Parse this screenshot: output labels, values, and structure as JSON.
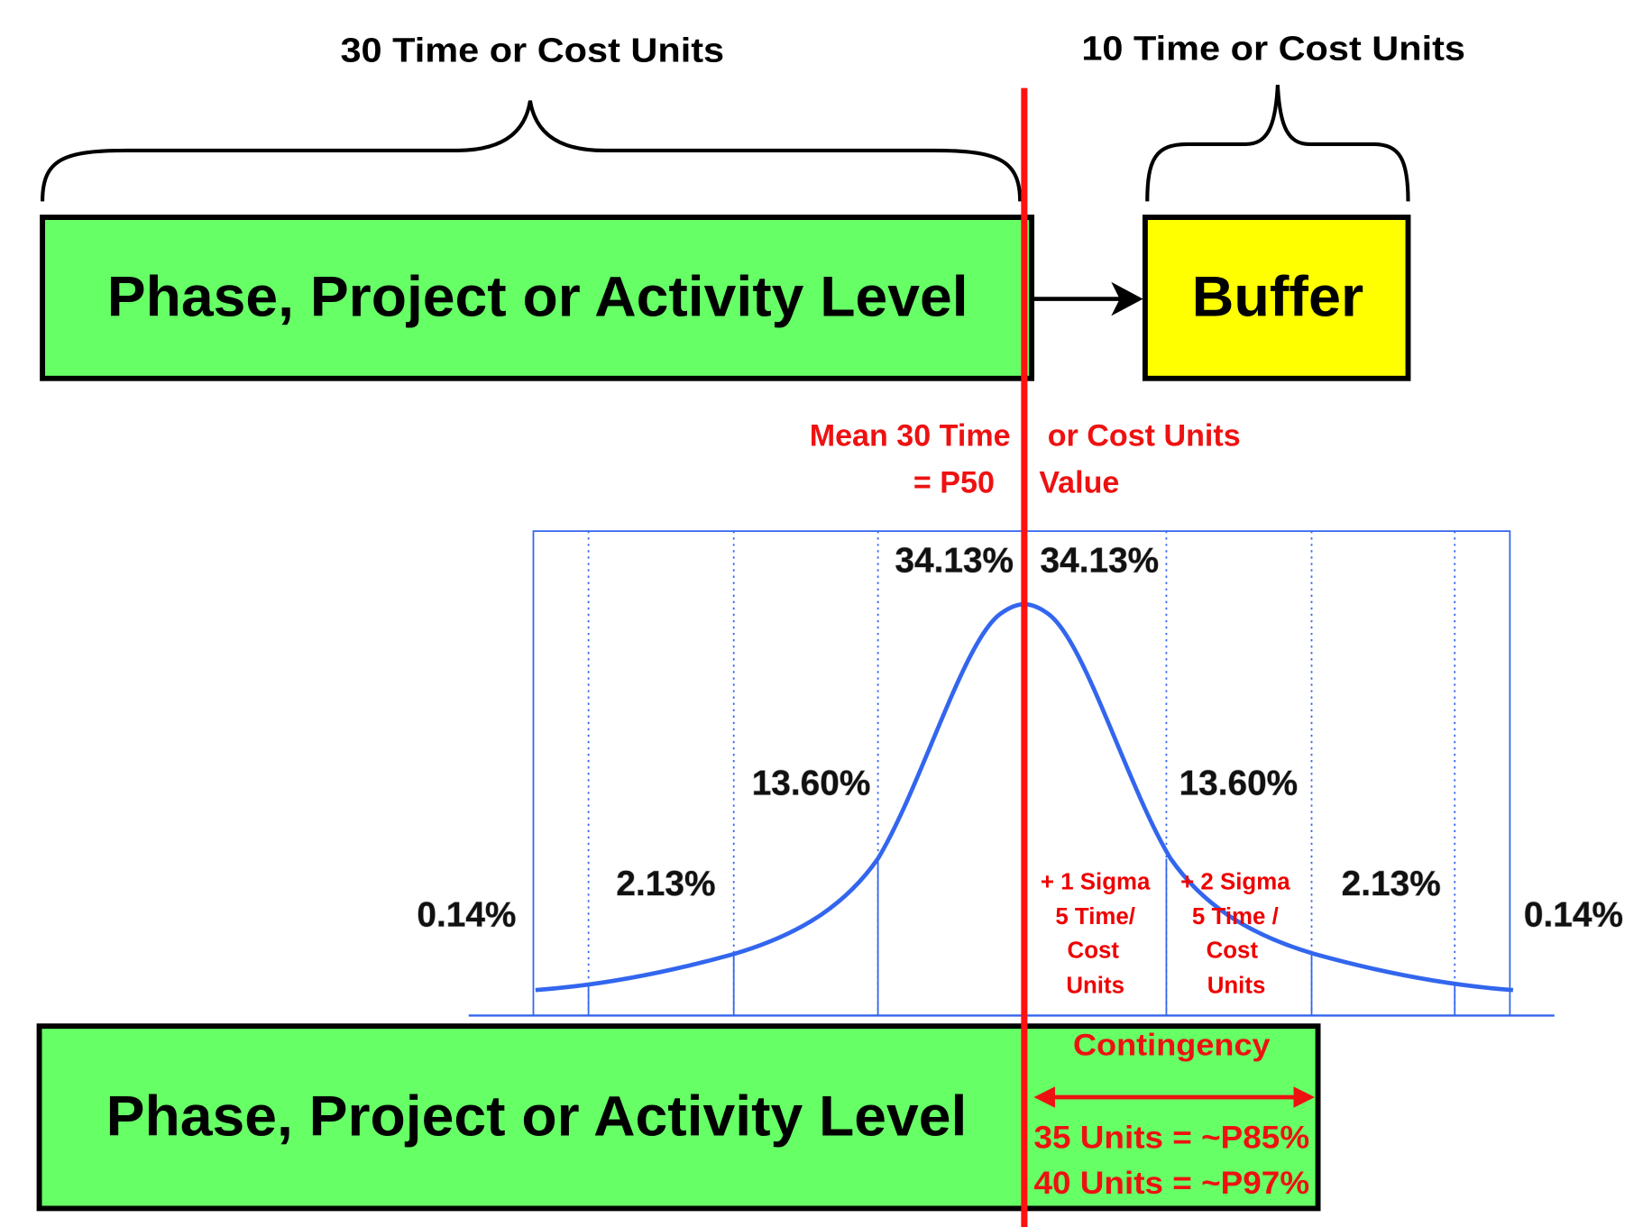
{
  "top_brace_label": "30 Time or Cost Units",
  "buffer_brace_label": "10 Time or Cost Units",
  "top_box_label": "Phase, Project or Activity Level",
  "buffer_label": "Buffer",
  "mean_label": {
    "line1_left": "Mean 30 Time",
    "line1_right": "or Cost Units",
    "line2_left": "= P50",
    "line2_right": "Value"
  },
  "percent_labels": [
    "0.14%",
    "2.13%",
    "13.60%",
    "34.13%",
    "34.13%",
    "13.60%",
    "2.13%",
    "0.14%"
  ],
  "sigma_labels": [
    [
      "+ 1 Sigma",
      "5 Time/",
      "Cost",
      "Units"
    ],
    [
      "+ 2 Sigma",
      "5 Time /",
      "Cost",
      "Units"
    ]
  ],
  "bottom_box_label": "Phase, Project or Activity Level",
  "contingency": {
    "title": "Contingency",
    "lines": [
      "35 Units = ~P85%",
      "40 Units = ~P97%"
    ]
  }
}
